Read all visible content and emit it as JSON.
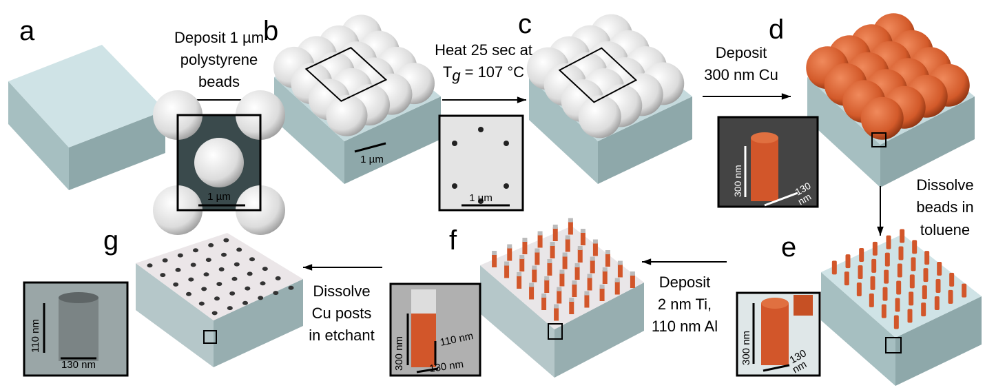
{
  "labels": [
    "a",
    "b",
    "c",
    "d",
    "e",
    "f",
    "g"
  ],
  "steps": [
    {
      "lines": [
        "Deposit 1 µm",
        "polystyrene",
        "beads"
      ]
    },
    {
      "lines": [
        "Heat 25 sec at",
        "T",
        "g",
        "= 107 °C"
      ]
    },
    {
      "lines": [
        "Deposit",
        "300 nm Cu"
      ]
    },
    {
      "lines": [
        "Dissolve",
        "beads in",
        "toluene"
      ]
    },
    {
      "lines": [
        "Deposit",
        "2 nm Ti,",
        "110 nm Al"
      ]
    },
    {
      "lines": [
        "Dissolve",
        "Cu posts",
        "in etchant"
      ]
    }
  ],
  "scale_bars": {
    "b_inset": "1 µm",
    "b": "1 µm",
    "c_inset": "1 µm",
    "d_inset": [
      "300 nm",
      "130",
      "nm"
    ],
    "e_inset": [
      "300 nm",
      "130",
      "nm"
    ],
    "f_inset": [
      "300 nm",
      "110 nm",
      "130 nm"
    ],
    "g_inset": [
      "110 nm",
      "130 nm"
    ]
  }
}
